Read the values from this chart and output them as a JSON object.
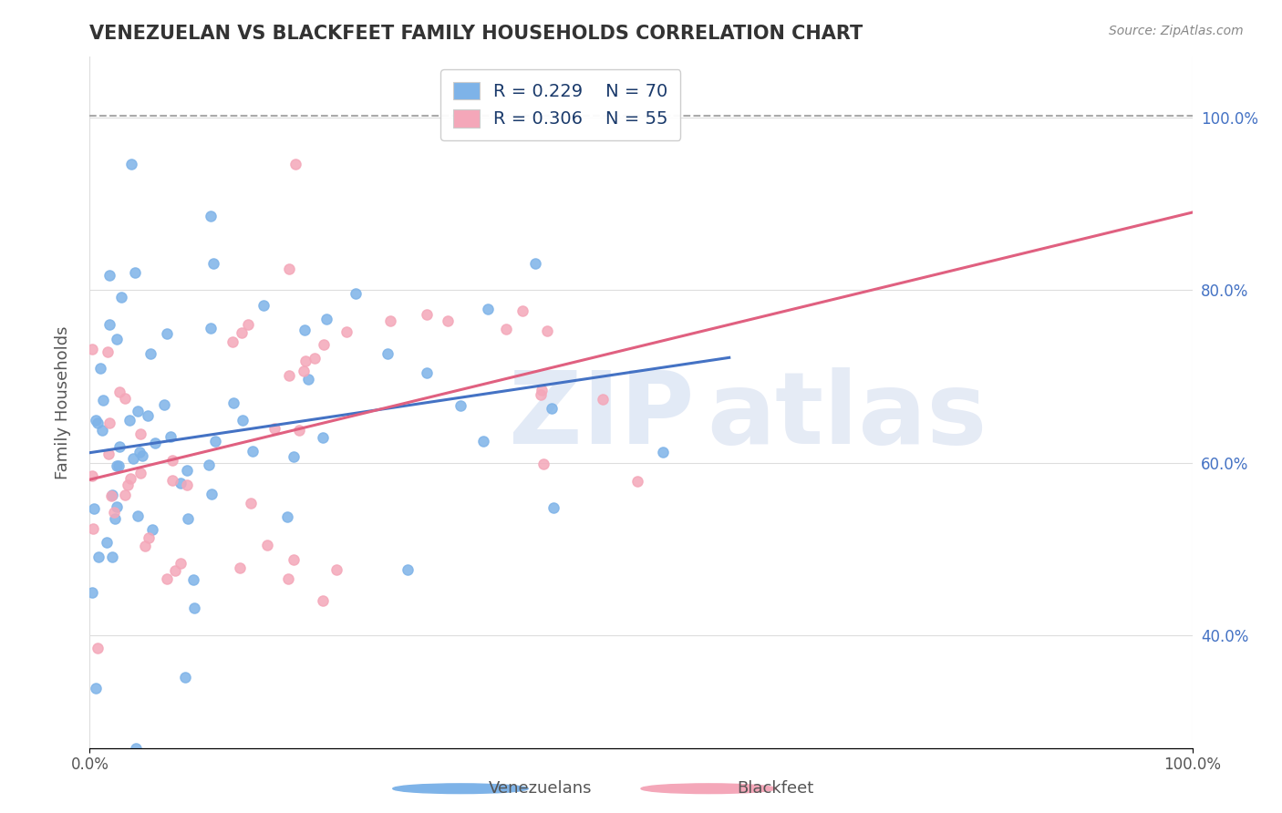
{
  "title": "VENEZUELAN VS BLACKFEET FAMILY HOUSEHOLDS CORRELATION CHART",
  "source": "Source: ZipAtlas.com",
  "ylabel": "Family Households",
  "legend_r": [
    "0.229",
    "0.306"
  ],
  "legend_n": [
    "70",
    "55"
  ],
  "blue_color": "#7EB3E8",
  "pink_color": "#F4A7B9",
  "blue_dark": "#4472C4",
  "pink_dark": "#E06080",
  "background_color": "#FFFFFF",
  "grid_color": "#DDDDDD"
}
